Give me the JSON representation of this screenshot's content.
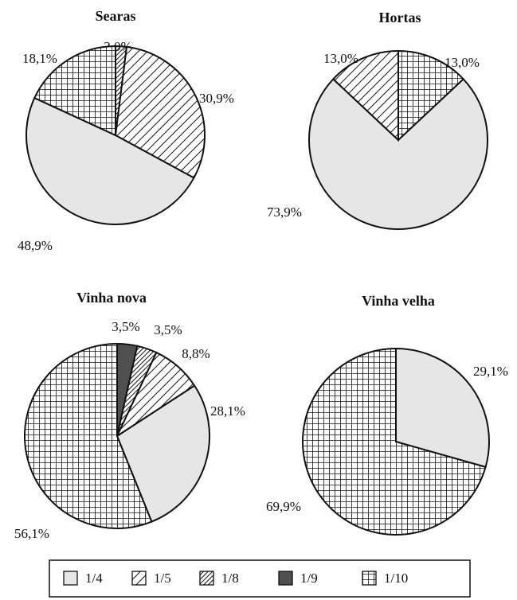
{
  "chart_data": [
    {
      "type": "pie",
      "title": "Searas",
      "categories": [
        "1/8",
        "1/5",
        "1/4",
        "1/10"
      ],
      "values": [
        2.0,
        30.9,
        48.9,
        18.1
      ],
      "value_labels": [
        "2,0%",
        "30,9%",
        "48,9%",
        "18,1%"
      ]
    },
    {
      "type": "pie",
      "title": "Hortas",
      "categories": [
        "1/10",
        "1/4",
        "1/5"
      ],
      "values": [
        13.0,
        73.9,
        13.0
      ],
      "value_labels": [
        "13,0%",
        "73,9%",
        "13,0%"
      ]
    },
    {
      "type": "pie",
      "title": "Vinha nova",
      "categories": [
        "1/9",
        "1/8",
        "1/5",
        "1/4",
        "1/10"
      ],
      "values": [
        3.5,
        3.5,
        8.8,
        28.1,
        56.1
      ],
      "value_labels": [
        "3,5%",
        "3,5%",
        "8,8%",
        "28,1%",
        "56,1%"
      ]
    },
    {
      "type": "pie",
      "title": "Vinha velha",
      "categories": [
        "1/4",
        "1/10"
      ],
      "values": [
        29.1,
        69.9
      ],
      "value_labels": [
        "29,1%",
        "69,9%"
      ]
    }
  ],
  "legend": {
    "labels": [
      "1/4",
      "1/5",
      "1/8",
      "1/9",
      "1/10"
    ],
    "fills": [
      "#e6e6e6",
      "hatch",
      "dense-hatch",
      "#505050",
      "grid"
    ]
  }
}
